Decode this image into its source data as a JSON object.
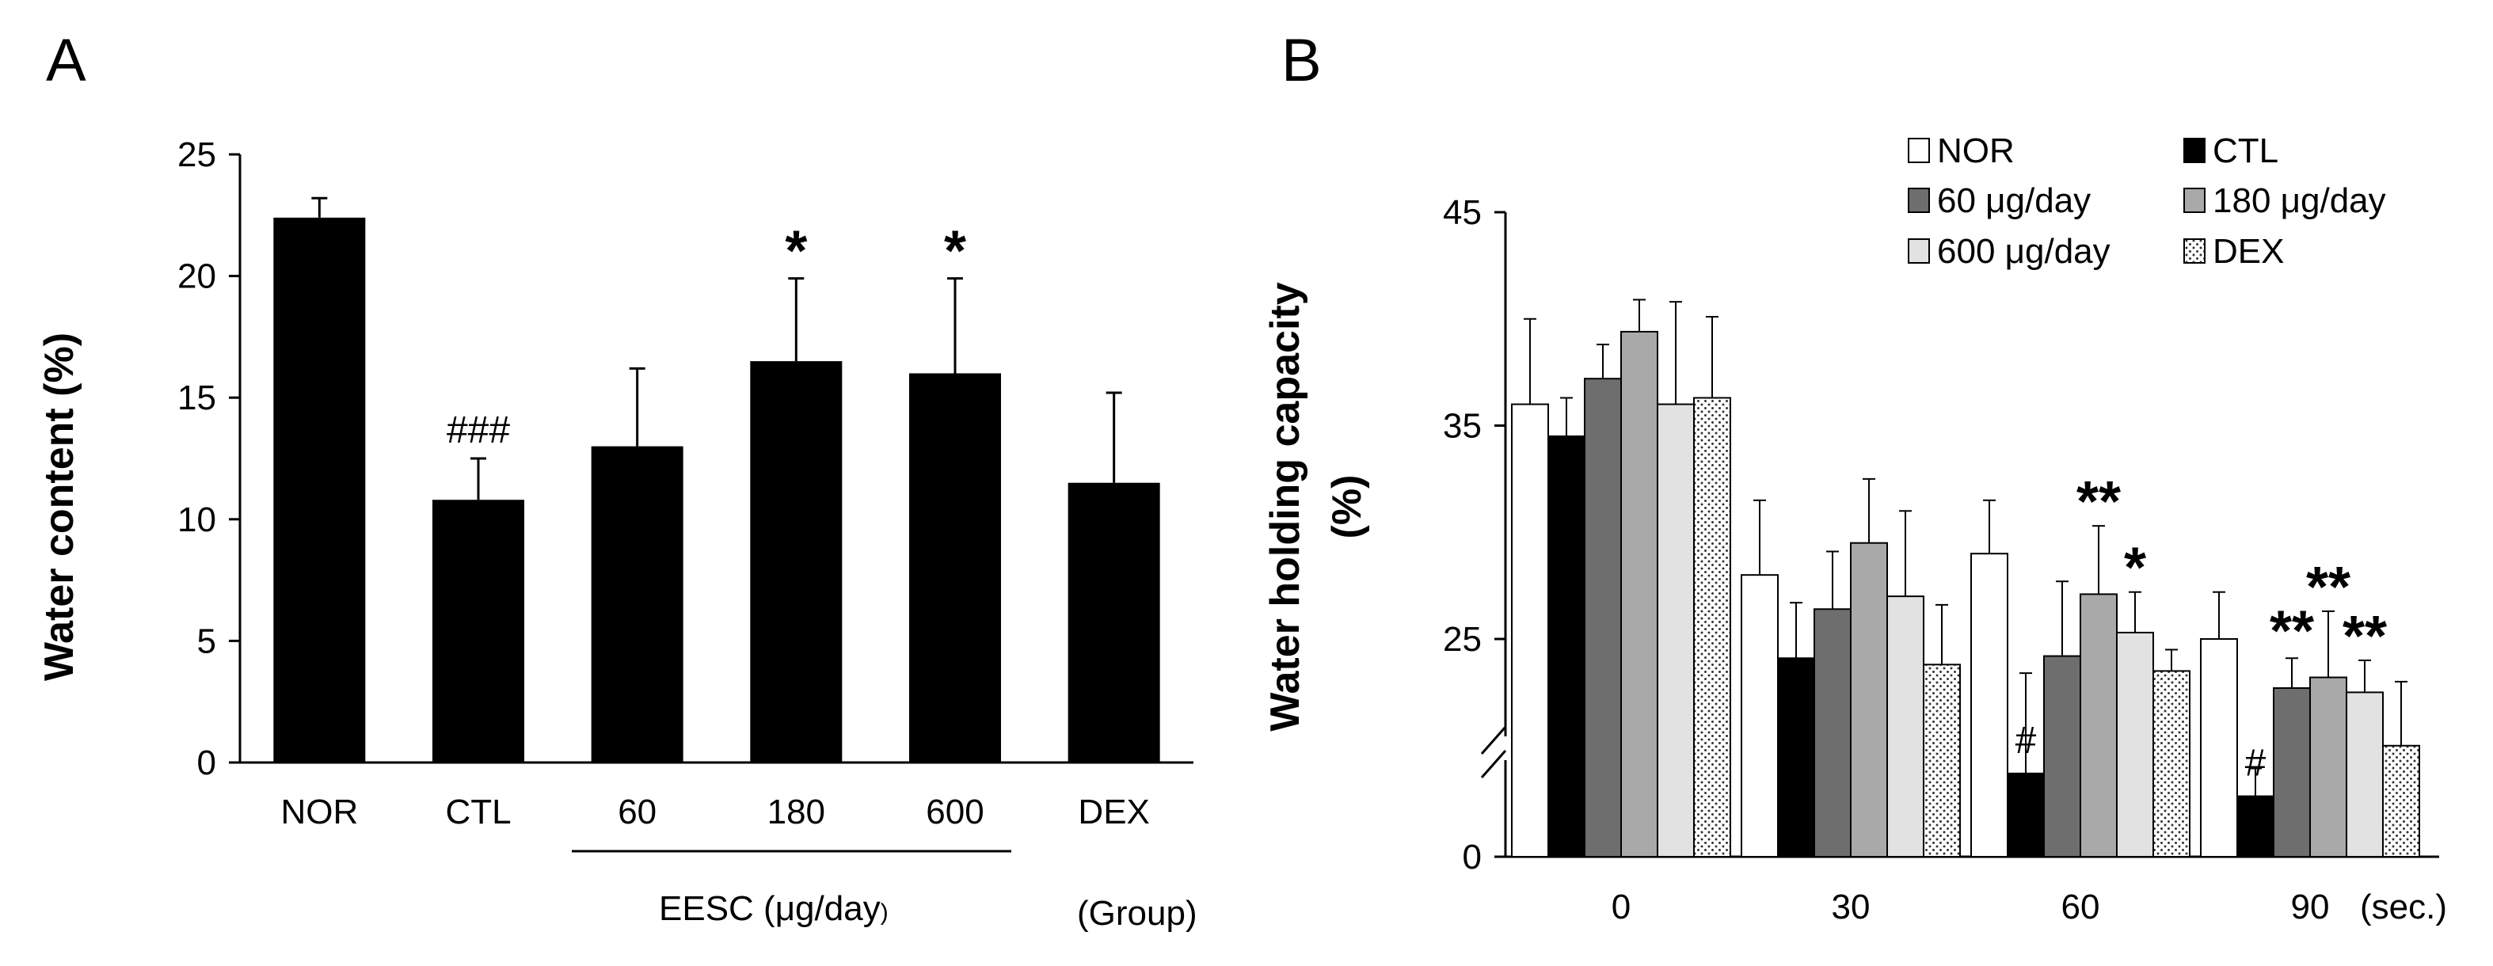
{
  "chart_data": [
    {
      "panel": "A",
      "type": "bar",
      "ylabel": "Water content (%)",
      "ylim": [
        0,
        25
      ],
      "yticks": [
        "0",
        "5",
        "10",
        "15",
        "20",
        "25"
      ],
      "categories": [
        "NOR",
        "CTL",
        "60",
        "180",
        "600",
        "DEX"
      ],
      "values": [
        22.4,
        10.8,
        13.0,
        16.5,
        16.0,
        11.5
      ],
      "errors": [
        0.8,
        1.7,
        3.2,
        3.4,
        3.9,
        3.7
      ],
      "annotations": [
        "",
        "###",
        "",
        "*",
        "*",
        ""
      ],
      "group_label": "EESC (",
      "group_unit": "μg/day",
      "group_close": ")",
      "group_tag": "(Group)",
      "bar_color": "#000000"
    },
    {
      "panel": "B",
      "type": "bar",
      "ylabel": "Water holding capacity",
      "ylabel_unit": "(%)",
      "ylim": [
        0,
        45
      ],
      "axis_break": [
        0,
        20
      ],
      "yticks": [
        "0",
        "25",
        "35",
        "45"
      ],
      "categories": [
        "0",
        "30",
        "60",
        "90"
      ],
      "x_unit": "(sec.)",
      "legend_unit": "μg/day",
      "series": [
        {
          "name": "NOR",
          "label": "NOR",
          "color": "#ffffff",
          "pattern": "none",
          "values": [
            36.0,
            28.0,
            29.0,
            25.0
          ],
          "errors": [
            4.0,
            3.5,
            2.5,
            2.2
          ],
          "annotations": [
            "",
            "",
            "",
            ""
          ]
        },
        {
          "name": "CTL",
          "label": "CTL",
          "color": "#000000",
          "pattern": "none",
          "values": [
            34.5,
            24.1,
            15.0,
            10.9
          ],
          "errors": [
            1.8,
            2.6,
            8.4,
            5.0
          ],
          "annotations": [
            "",
            "",
            "#",
            "#"
          ]
        },
        {
          "name": "60",
          "label": "60 ",
          "color": "#6e6e6e",
          "pattern": "none",
          "values": [
            37.2,
            26.4,
            24.2,
            22.7
          ],
          "errors": [
            1.6,
            2.7,
            3.5,
            1.4
          ],
          "annotations": [
            "",
            "",
            "",
            "**"
          ]
        },
        {
          "name": "180",
          "label": "180 ",
          "color": "#a9a9a9",
          "pattern": "none",
          "values": [
            39.4,
            29.5,
            27.1,
            23.2
          ],
          "errors": [
            1.5,
            3.0,
            3.2,
            3.1
          ],
          "annotations": [
            "",
            "",
            "**",
            "**"
          ]
        },
        {
          "name": "600",
          "label": "600 ",
          "color": "#e2e2e2",
          "pattern": "none",
          "values": [
            36.0,
            27.0,
            25.3,
            22.5
          ],
          "errors": [
            4.8,
            4.0,
            1.9,
            1.5
          ],
          "annotations": [
            "",
            "",
            "*",
            "**"
          ]
        },
        {
          "name": "DEX",
          "label": "DEX",
          "color": "#ffffff",
          "pattern": "dots",
          "values": [
            36.3,
            23.8,
            23.5,
            20.0
          ],
          "errors": [
            3.8,
            2.8,
            1.0,
            3.0
          ],
          "annotations": [
            "",
            "",
            "",
            ""
          ]
        }
      ]
    }
  ]
}
